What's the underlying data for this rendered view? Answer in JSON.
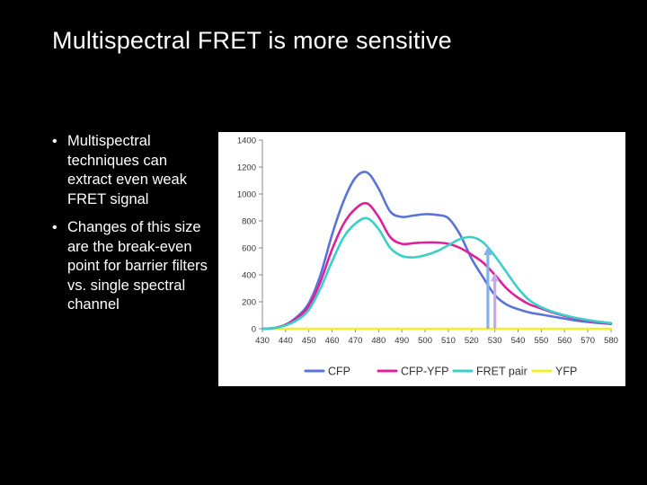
{
  "slide": {
    "title": "Multispectral FRET is more sensitive",
    "bullets": [
      "Multispectral techniques can extract even weak FRET signal",
      "Changes of this size are the break-even point for barrier filters vs. single spectral channel"
    ],
    "bullet_glyph": "•"
  },
  "chart_data": {
    "type": "line",
    "title": "",
    "xlabel": "",
    "ylabel": "",
    "xlim": [
      430,
      580
    ],
    "ylim": [
      0,
      1400
    ],
    "x_ticks": [
      430,
      440,
      450,
      460,
      470,
      480,
      490,
      500,
      510,
      520,
      530,
      540,
      550,
      560,
      570,
      580
    ],
    "y_ticks": [
      0,
      200,
      400,
      600,
      800,
      1000,
      1200,
      1400
    ],
    "grid": false,
    "legend_position": "bottom",
    "series": [
      {
        "name": "CFP",
        "color": "#5874d8",
        "x": [
          430,
          435,
          440,
          445,
          450,
          455,
          460,
          465,
          470,
          475,
          480,
          485,
          490,
          495,
          500,
          505,
          510,
          515,
          520,
          525,
          530,
          535,
          540,
          545,
          550,
          555,
          560,
          565,
          570,
          575,
          580
        ],
        "y": [
          0,
          5,
          30,
          90,
          190,
          400,
          700,
          950,
          1120,
          1160,
          1040,
          870,
          830,
          840,
          850,
          845,
          820,
          700,
          520,
          380,
          250,
          180,
          145,
          120,
          105,
          90,
          75,
          60,
          50,
          42,
          35
        ]
      },
      {
        "name": "CFP-YFP",
        "color": "#e0209a",
        "x": [
          430,
          435,
          440,
          445,
          450,
          455,
          460,
          465,
          470,
          475,
          480,
          485,
          490,
          495,
          500,
          505,
          510,
          515,
          520,
          525,
          530,
          535,
          540,
          545,
          550,
          555,
          560,
          565,
          570,
          575,
          580
        ],
        "y": [
          0,
          5,
          30,
          80,
          170,
          350,
          590,
          780,
          890,
          930,
          830,
          680,
          630,
          635,
          640,
          640,
          630,
          600,
          550,
          490,
          400,
          300,
          230,
          180,
          150,
          120,
          95,
          75,
          60,
          48,
          40
        ]
      },
      {
        "name": "FRET pair",
        "color": "#3ad0c8",
        "x": [
          430,
          435,
          440,
          445,
          450,
          455,
          460,
          465,
          470,
          475,
          480,
          485,
          490,
          495,
          500,
          505,
          510,
          515,
          520,
          525,
          530,
          535,
          540,
          545,
          550,
          555,
          560,
          565,
          570,
          575,
          580
        ],
        "y": [
          0,
          5,
          25,
          65,
          140,
          300,
          500,
          680,
          780,
          820,
          740,
          600,
          540,
          530,
          545,
          575,
          620,
          665,
          680,
          640,
          540,
          420,
          300,
          210,
          160,
          125,
          100,
          80,
          65,
          52,
          42
        ]
      },
      {
        "name": "YFP",
        "color": "#f2f02a",
        "x": [
          430,
          580
        ],
        "y": [
          0,
          0
        ]
      }
    ],
    "annotations": [
      {
        "type": "arrow",
        "x": 527,
        "y_from": 0,
        "y_to": 605,
        "color": "#7fb3ee"
      },
      {
        "type": "arrow",
        "x": 530,
        "y_from": 0,
        "y_to": 410,
        "color": "#c9a8e8"
      }
    ]
  }
}
